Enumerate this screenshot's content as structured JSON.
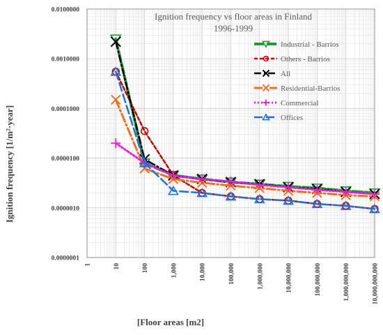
{
  "chart_data": {
    "type": "line",
    "title": "Ignition frequency vs floor areas in Finland",
    "subtitle": "1996-1999",
    "xlabel": "[Floor areas [m2]",
    "ylabel": "Ignition frequency [1/m²·year]",
    "xscale": "log",
    "yscale": "log",
    "xlim": [
      1,
      10000000000
    ],
    "ylim": [
      1e-07,
      0.01
    ],
    "grid": true,
    "legend_position": "top-right",
    "x_tick_labels": [
      "1",
      "10",
      "100",
      "1,000",
      "10,000",
      "100,000",
      "1,000,000",
      "10,000,000",
      "100,000,000",
      "1,000,000,000",
      "10,000,000,000"
    ],
    "y_tick_labels": [
      "0.0000001",
      "0.0000010",
      "0.0000100",
      "0.0001000",
      "0.0010000",
      "0.0100000"
    ],
    "series": [
      {
        "name": "Industrial - Barrios",
        "color": "#1e9b36",
        "marker": "triangle-down",
        "x": [
          10,
          100,
          1000,
          10000,
          100000,
          1000000,
          10000000,
          100000000,
          1000000000,
          10000000000
        ],
        "y": [
          0.0025,
          8e-06,
          4.5e-06,
          3.8e-06,
          3.3e-06,
          3e-06,
          2.7e-06,
          2.5e-06,
          2.2e-06,
          2e-06
        ]
      },
      {
        "name": "Others - Barrios",
        "color": "#c00000",
        "marker": "circle",
        "x": [
          10,
          100,
          1000,
          10000,
          100000,
          1000000,
          10000000,
          100000000,
          1000000000,
          10000000000
        ],
        "y": [
          0.00055,
          3.5e-05,
          4.5e-06,
          2e-06,
          1.7e-06,
          1.5e-06,
          1.4e-06,
          1.2e-06,
          1.1e-06,
          9.5e-07
        ]
      },
      {
        "name": "All",
        "color": "#000000",
        "marker": "x",
        "x": [
          10,
          100,
          1000,
          10000,
          100000,
          1000000,
          10000000,
          100000000,
          1000000000,
          10000000000
        ],
        "y": [
          0.0022,
          9.5e-06,
          4.5e-06,
          3.8e-06,
          3.3e-06,
          3e-06,
          2.6e-06,
          2.4e-06,
          2.1e-06,
          1.9e-06
        ]
      },
      {
        "name": "Residential-Barrios",
        "color": "#f36f21",
        "marker": "x",
        "x": [
          10,
          100,
          1000,
          10000,
          100000,
          1000000,
          10000000,
          100000000,
          1000000000,
          10000000000
        ],
        "y": [
          0.00015,
          6.2e-06,
          3.8e-06,
          3.2e-06,
          2.8e-06,
          2.5e-06,
          2.2e-06,
          2e-06,
          1.8e-06,
          1.7e-06
        ]
      },
      {
        "name": "Commercial",
        "color": "#e020e0",
        "marker": "plus",
        "x": [
          10,
          100,
          1000,
          10000,
          100000,
          1000000,
          10000000,
          100000000,
          1000000000,
          10000000000
        ],
        "y": [
          2e-05,
          8e-06,
          4.5e-06,
          3.8e-06,
          3.4e-06,
          2.9e-06,
          2.6e-06,
          2.3e-06,
          2.1e-06,
          1.9e-06
        ]
      },
      {
        "name": "Offices",
        "color": "#1f6fd9",
        "marker": "triangle-up",
        "x": [
          10,
          100,
          1000,
          10000,
          100000,
          1000000,
          10000000,
          100000000,
          1000000000,
          10000000000
        ],
        "y": [
          0.00055,
          8e-06,
          2.2e-06,
          2e-06,
          1.7e-06,
          1.5e-06,
          1.4e-06,
          1.2e-06,
          1.1e-06,
          9.5e-07
        ]
      }
    ]
  }
}
